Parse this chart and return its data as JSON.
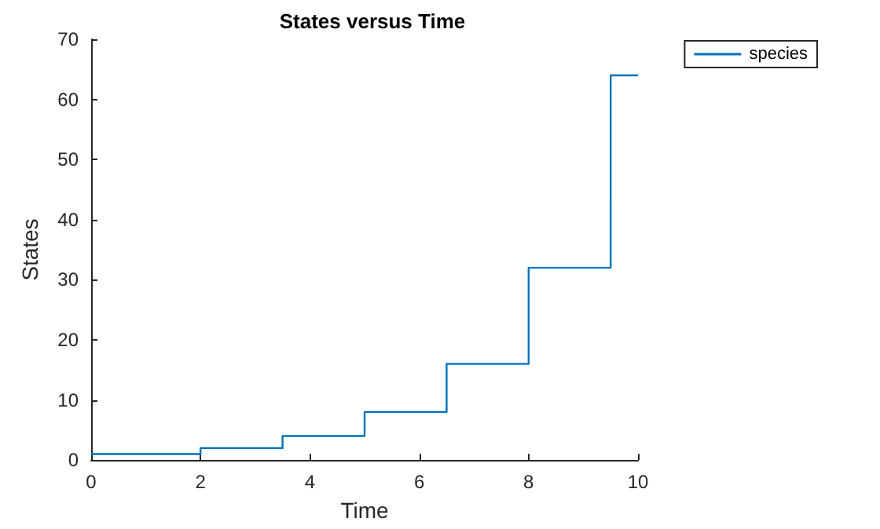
{
  "chart_data": {
    "type": "step",
    "title": "States versus Time",
    "xlabel": "Time",
    "ylabel": "States",
    "x": [
      0,
      2,
      3.5,
      5,
      6.5,
      8,
      9.5,
      10
    ],
    "series": [
      {
        "name": "species",
        "color": "#0072bd",
        "values": [
          1,
          2,
          4,
          8,
          16,
          32,
          64,
          64
        ]
      }
    ],
    "xlim": [
      0,
      10
    ],
    "xticks": [
      0,
      2,
      4,
      6,
      8,
      10
    ],
    "ylim": [
      0,
      70
    ],
    "yticks": [
      0,
      10,
      20,
      30,
      40,
      50,
      60,
      70
    ],
    "grid": false,
    "legend": "top right",
    "line_style": "solid",
    "marker": "none"
  }
}
